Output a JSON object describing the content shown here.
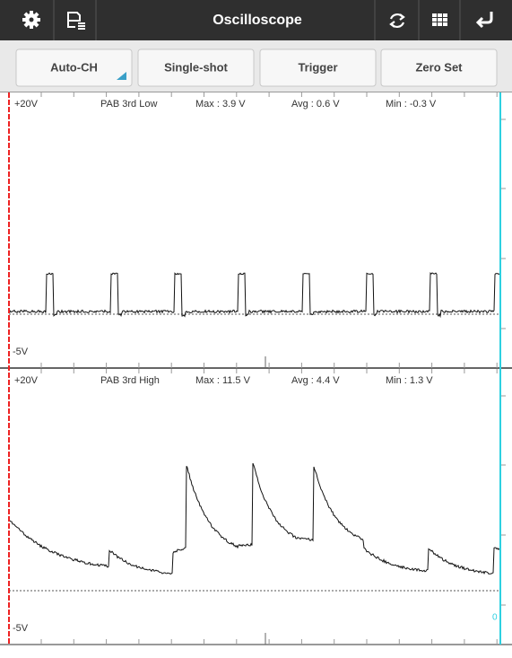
{
  "toolbar": {
    "title": "Oscilloscope"
  },
  "buttons": [
    "Auto-CH",
    "Single-shot",
    "Trigger",
    "Zero Set"
  ],
  "channels": [
    {
      "top_label": "+20V",
      "name": "PAB 3rd Low",
      "max": "Max : 3.9 V",
      "avg": "Avg : 0.6 V",
      "min": "Min : -0.3 V",
      "bottom_label": "-5V"
    },
    {
      "top_label": "+20V",
      "name": "PAB 3rd High",
      "max": "Max : 11.5 V",
      "avg": "Avg : 4.4 V",
      "min": "Min : 1.3 V",
      "bottom_label": "-5V"
    }
  ],
  "cursor_label": "0"
}
